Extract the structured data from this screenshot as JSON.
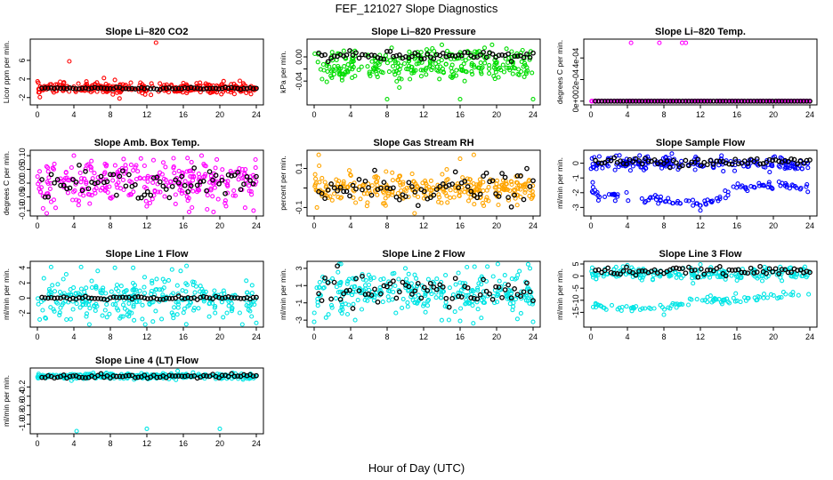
{
  "figure": {
    "title": "FEF_121027  Slope Diagnostics",
    "xlabel": "Hour of Day (UTC)"
  },
  "chart_data": [
    {
      "type": "scatter",
      "title": "Slope Li–820 CO2",
      "ylabel": "Licor ppm per min.",
      "color": "#ff0000",
      "ylim": [
        -3,
        10
      ],
      "yticks": [
        -2,
        2,
        6
      ],
      "xlim": [
        0,
        24
      ],
      "xticks": [
        0,
        4,
        8,
        12,
        16,
        20,
        24
      ],
      "series": [
        {
          "name": "scatter",
          "center": 0,
          "spread": 0.55,
          "outliers": [
            [
              13,
              9.8
            ],
            [
              3.5,
              5.8
            ],
            [
              2.5,
              1.4
            ],
            [
              4.5,
              1.0
            ],
            [
              7.3,
              2.2
            ],
            [
              8.5,
              1.8
            ],
            [
              9,
              -2.2
            ],
            [
              11.3,
              1.2
            ],
            [
              16,
              1.1
            ]
          ]
        },
        {
          "name": "mean",
          "center": 0,
          "spread": 0.1
        }
      ]
    },
    {
      "type": "scatter",
      "title": "Slope Li–820 Pressure",
      "ylabel": "kPa per min.",
      "color": "#00dd00",
      "ylim": [
        -0.075,
        0.025
      ],
      "yticks": [
        -0.04,
        -0.02,
        0.0
      ],
      "ytickLabels": [
        "-0.04",
        "",
        "0.00"
      ],
      "xlim": [
        0,
        24
      ],
      "xticks": [
        0,
        4,
        8,
        12,
        16,
        20,
        24
      ],
      "series": [
        {
          "name": "scatter",
          "center": -0.008,
          "spread": 0.016,
          "bands": [
            0.0,
            -0.015,
            -0.025
          ],
          "outliers": [
            [
              8,
              -0.07
            ],
            [
              16,
              -0.07
            ],
            [
              24,
              -0.07
            ],
            [
              16.5,
              -0.04
            ],
            [
              8.5,
              0.015
            ],
            [
              14,
              0.02
            ],
            [
              19.5,
              0.02
            ]
          ]
        },
        {
          "name": "mean",
          "center": 0.001,
          "spread": 0.004
        }
      ]
    },
    {
      "type": "scatter",
      "title": "Slope Li–820 Temp.",
      "ylabel": "degrees C per min.",
      "color": "#ff00ff",
      "ylim": [
        -1e-05,
        0.00055
      ],
      "yticks": [
        0,
        0.0002,
        0.0004
      ],
      "ytickLabels": [
        "0e+00",
        "2e-04",
        "4e-04"
      ],
      "xlim": [
        0,
        24
      ],
      "xticks": [
        0,
        4,
        8,
        12,
        16,
        20,
        24
      ],
      "series": [
        {
          "name": "scatter",
          "center": 0,
          "spread": 0,
          "outliers": [
            [
              4.4,
              0.00054
            ],
            [
              7.5,
              0.00054
            ],
            [
              10,
              0.00054
            ],
            [
              10.4,
              0.00054
            ]
          ]
        },
        {
          "name": "mean",
          "center": 0,
          "spread": 0
        }
      ]
    },
    {
      "type": "scatter",
      "title": "Slope Amb. Box Temp.",
      "ylabel": "degrees C per min.",
      "color": "#ff00ff",
      "ylim": [
        -0.11,
        0.11
      ],
      "yticks": [
        -0.1,
        -0.05,
        0.0,
        0.05,
        0.1
      ],
      "ytickLabels": [
        "-0.10",
        "-0.05",
        "0.00",
        "0.05",
        "0.10"
      ],
      "xlim": [
        0,
        24
      ],
      "xticks": [
        0,
        4,
        8,
        12,
        16,
        20,
        24
      ],
      "series": [
        {
          "name": "scatter",
          "center": 0,
          "spread": 0.04,
          "outliers": [
            [
              23.7,
              -0.1
            ],
            [
              2,
              -0.09
            ],
            [
              4,
              0.1
            ],
            [
              18,
              0.1
            ]
          ]
        },
        {
          "name": "mean",
          "center": 0,
          "spread": 0.025
        }
      ]
    },
    {
      "type": "scatter",
      "title": "Slope Gas Stream RH",
      "ylabel": "percent per min.",
      "color": "#ffa500",
      "ylim": [
        -0.13,
        0.18
      ],
      "yticks": [
        -0.1,
        0.0,
        0.1
      ],
      "ytickLabels": [
        "-0.1",
        "",
        "0.1"
      ],
      "xlim": [
        0,
        24
      ],
      "xticks": [
        0,
        4,
        8,
        12,
        16,
        20,
        24
      ],
      "series": [
        {
          "name": "scatter",
          "center": 0,
          "spread": 0.035,
          "outliers": [
            [
              0.5,
              0.17
            ],
            [
              0.3,
              -0.1
            ],
            [
              17.5,
              0.17
            ],
            [
              16,
              0.15
            ],
            [
              11,
              -0.13
            ]
          ]
        },
        {
          "name": "mean",
          "center": 0,
          "spread": 0.04
        }
      ]
    },
    {
      "type": "scatter",
      "title": "Slope Sample Flow",
      "ylabel": "ml/min per min.",
      "color": "#0000ff",
      "ylim": [
        -3.4,
        0.7
      ],
      "yticks": [
        -3,
        -2,
        -1,
        0
      ],
      "xlim": [
        0,
        24
      ],
      "xticks": [
        0,
        4,
        8,
        12,
        16,
        20,
        24
      ],
      "series": [
        {
          "name": "scatter",
          "center": 0,
          "spread": 0.25,
          "lower": [
            [
              0,
              -1.6
            ],
            [
              1,
              -2.4
            ],
            [
              4,
              -2.2
            ],
            [
              8,
              -2.5
            ],
            [
              12,
              -2.9
            ],
            [
              14,
              -2.4
            ],
            [
              16,
              -1.7
            ],
            [
              20,
              -1.5
            ],
            [
              24,
              -1.6
            ]
          ],
          "outliers": [
            [
              0.2,
              -1.3
            ],
            [
              12,
              -3.2
            ]
          ]
        },
        {
          "name": "mean",
          "center": 0.1,
          "spread": 0.15
        }
      ]
    },
    {
      "type": "scatter",
      "title": "Slope Line 1 Flow",
      "ylabel": "ml/min per min.",
      "color": "#00e5e5",
      "ylim": [
        -3.5,
        4.5
      ],
      "yticks": [
        -2,
        0,
        2,
        4
      ],
      "xlim": [
        0,
        24
      ],
      "xticks": [
        0,
        4,
        8,
        12,
        16,
        20,
        24
      ],
      "series": [
        {
          "name": "scatter",
          "center": 0,
          "spread": 1.5,
          "outliers": [
            [
              24,
              -3.3
            ],
            [
              1.5,
              4.1
            ],
            [
              8.5,
              4.0
            ],
            [
              10.5,
              4.0
            ]
          ]
        },
        {
          "name": "mean",
          "center": 0,
          "spread": 0.1
        }
      ]
    },
    {
      "type": "scatter",
      "title": "Slope Line 2 Flow",
      "ylabel": "ml/min per min.",
      "color": "#00e5e5",
      "ylim": [
        -3.5,
        3.5
      ],
      "yticks": [
        -3,
        -1,
        1,
        3
      ],
      "xlim": [
        0,
        24
      ],
      "xticks": [
        0,
        4,
        8,
        12,
        16,
        20,
        24
      ],
      "series": [
        {
          "name": "scatter",
          "center": 0.2,
          "spread": 1.2,
          "outliers": [
            [
              0,
              -3.2
            ],
            [
              24,
              -3.2
            ],
            [
              16,
              -3.1
            ],
            [
              4.5,
              -3.0
            ],
            [
              10,
              3.0
            ]
          ]
        },
        {
          "name": "mean",
          "center": 0.3,
          "spread": 0.9
        }
      ]
    },
    {
      "type": "scatter",
      "title": "Slope Line 3 Flow",
      "ylabel": "ml/min per min.",
      "color": "#00e5e5",
      "ylim": [
        -20,
        5
      ],
      "yticks": [
        -15,
        -10,
        -5,
        0,
        5
      ],
      "xlim": [
        0,
        24
      ],
      "xticks": [
        0,
        4,
        8,
        12,
        16,
        20,
        24
      ],
      "series": [
        {
          "name": "scatter",
          "center": 1,
          "spread": 1.3,
          "lower": [
            [
              0,
              -12
            ],
            [
              3,
              -13
            ],
            [
              8,
              -13
            ],
            [
              12,
              -10
            ],
            [
              16,
              -10
            ],
            [
              20,
              -8
            ],
            [
              24,
              -7
            ]
          ],
          "outliers": [
            [
              4,
              4.5
            ],
            [
              12,
              4.8
            ],
            [
              8,
              -16
            ]
          ]
        },
        {
          "name": "mean",
          "center": 2,
          "spread": 0.8
        }
      ]
    },
    {
      "type": "scatter",
      "title": "Slope Line 4 (LT) Flow",
      "ylabel": "ml/min per min.",
      "color": "#00e5e5",
      "ylim": [
        -1.15,
        0.15
      ],
      "yticks": [
        -1.0,
        -0.8,
        -0.6,
        -0.4,
        -0.2
      ],
      "ytickLabels": [
        "-1.0",
        "-0.8",
        "-0.6",
        "-0.4",
        "-0.2"
      ],
      "xlim": [
        0,
        24
      ],
      "xticks": [
        0,
        4,
        8,
        12,
        16,
        20,
        24
      ],
      "series": [
        {
          "name": "scatter",
          "center": 0.03,
          "spread": 0.03,
          "outliers": [
            [
              4.3,
              -1.15
            ],
            [
              12,
              -1.1
            ],
            [
              20,
              -1.1
            ]
          ]
        },
        {
          "name": "mean",
          "center": 0.03,
          "spread": 0.02
        }
      ]
    }
  ]
}
